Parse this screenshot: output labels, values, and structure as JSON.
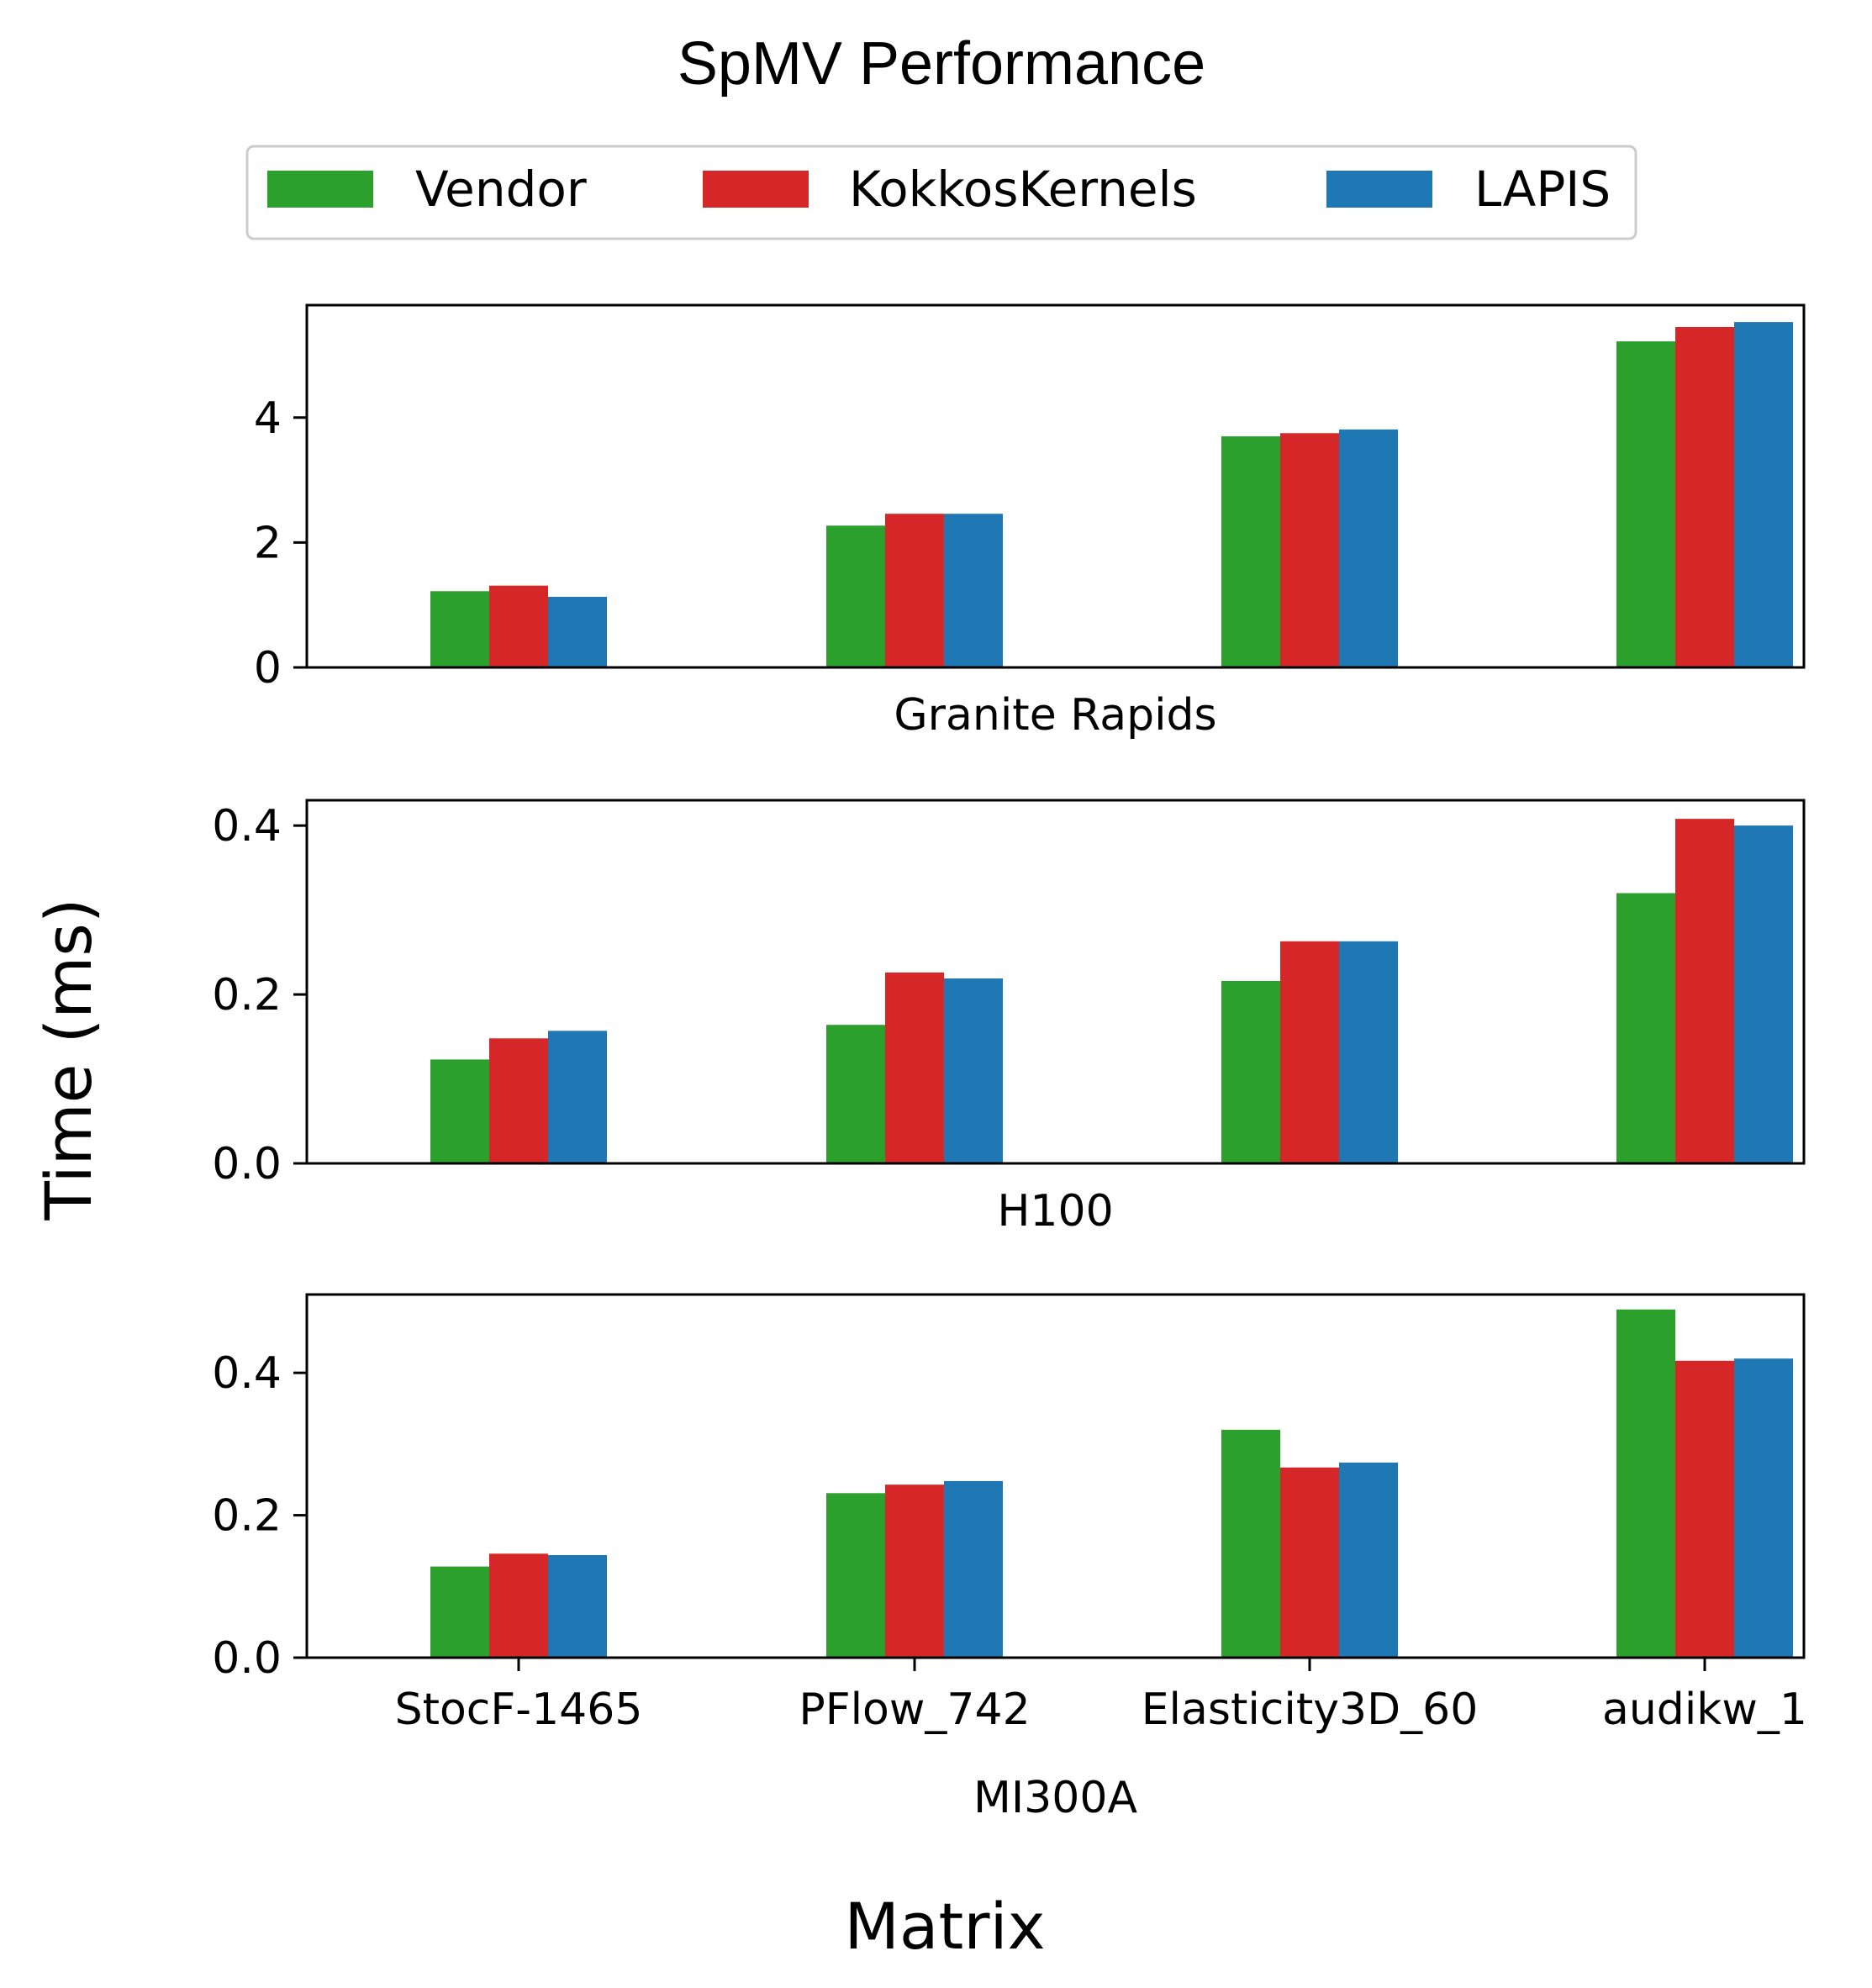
{
  "title": "SpMV Performance",
  "ylabel": "Time (ms)",
  "xlabel": "Matrix",
  "colors": {
    "Vendor": "#2ca02c",
    "KokkosKernels": "#d62728",
    "LAPIS": "#1f77b4"
  },
  "legend": [
    "Vendor",
    "KokkosKernels",
    "LAPIS"
  ],
  "chart_data": [
    {
      "type": "bar",
      "name": "Granite Rapids",
      "categories": [
        "StocF-1465",
        "PFlow_742",
        "Elasticity3D_60",
        "audikw_1"
      ],
      "ylim": [
        0,
        5.8
      ],
      "yticks": [
        0,
        2,
        4
      ],
      "ytick_labels": [
        "0",
        "2",
        "4"
      ],
      "show_xticks": false,
      "series": [
        {
          "name": "Vendor",
          "values": [
            1.22,
            2.27,
            3.7,
            5.22
          ]
        },
        {
          "name": "KokkosKernels",
          "values": [
            1.31,
            2.46,
            3.75,
            5.45
          ]
        },
        {
          "name": "LAPIS",
          "values": [
            1.13,
            2.46,
            3.81,
            5.53
          ]
        }
      ]
    },
    {
      "type": "bar",
      "name": "H100",
      "categories": [
        "StocF-1465",
        "PFlow_742",
        "Elasticity3D_60",
        "audikw_1"
      ],
      "ylim": [
        0,
        0.43
      ],
      "yticks": [
        0,
        0.2,
        0.4
      ],
      "ytick_labels": [
        "0.0",
        "0.2",
        "0.4"
      ],
      "show_xticks": false,
      "series": [
        {
          "name": "Vendor",
          "values": [
            0.123,
            0.164,
            0.216,
            0.32
          ]
        },
        {
          "name": "KokkosKernels",
          "values": [
            0.148,
            0.226,
            0.263,
            0.408
          ]
        },
        {
          "name": "LAPIS",
          "values": [
            0.157,
            0.219,
            0.263,
            0.4
          ]
        }
      ]
    },
    {
      "type": "bar",
      "name": "MI300A",
      "categories": [
        "StocF-1465",
        "PFlow_742",
        "Elasticity3D_60",
        "audikw_1"
      ],
      "ylim": [
        0,
        0.51
      ],
      "yticks": [
        0,
        0.2,
        0.4
      ],
      "ytick_labels": [
        "0.0",
        "0.2",
        "0.4"
      ],
      "show_xticks": true,
      "series": [
        {
          "name": "Vendor",
          "values": [
            0.128,
            0.231,
            0.32,
            0.489
          ]
        },
        {
          "name": "KokkosKernels",
          "values": [
            0.146,
            0.243,
            0.267,
            0.417
          ]
        },
        {
          "name": "LAPIS",
          "values": [
            0.144,
            0.248,
            0.274,
            0.42
          ]
        }
      ]
    }
  ]
}
